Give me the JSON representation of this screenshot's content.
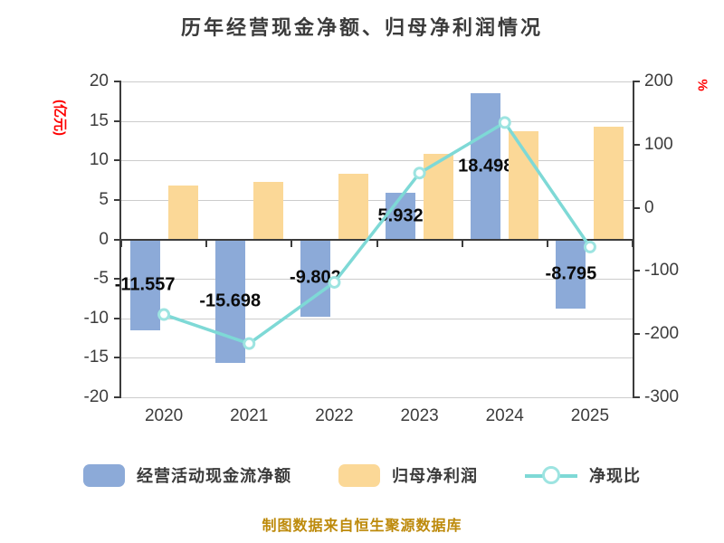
{
  "title": "历年经营现金净额、归母净利润情况",
  "left_axis": {
    "unit": "(亿元)",
    "max": 20,
    "min": -20,
    "ticks": [
      20,
      15,
      10,
      5,
      0,
      -5,
      -10,
      -15,
      -20
    ]
  },
  "right_axis": {
    "unit": "%",
    "max": 200,
    "min": -300,
    "ticks": [
      200,
      100,
      0,
      -100,
      -200,
      -300
    ]
  },
  "chart_data": {
    "type": "bar+line",
    "title": "历年经营现金净额、归母净利润情况",
    "categories": [
      "2020",
      "2021",
      "2022",
      "2023",
      "2024",
      "2025"
    ],
    "series": [
      {
        "name": "经营活动现金流净额",
        "type": "bar",
        "axis": "left",
        "color": "#8caad8",
        "values": [
          -11.557,
          -15.698,
          -9.802,
          5.932,
          18.498,
          -8.795
        ],
        "labels": [
          "-11.557",
          "-15.698",
          "-9.802",
          "5.932",
          "18.498",
          "-8.795"
        ]
      },
      {
        "name": "归母净利润",
        "type": "bar",
        "axis": "left",
        "color": "#fbd897",
        "values": [
          6.8,
          7.3,
          8.3,
          10.8,
          13.7,
          14.3
        ]
      },
      {
        "name": "净现比",
        "type": "line",
        "axis": "right",
        "color": "#7ed9d6",
        "marker_border": "#9de4e1",
        "marker_fill": "#ffffff",
        "values": [
          -169,
          -215,
          -118,
          55,
          135,
          -62
        ]
      }
    ],
    "xlabel": "",
    "ylabel_left": "(亿元)",
    "ylabel_right": "%",
    "ylim_left": [
      -20,
      20
    ],
    "ylim_right": [
      -300,
      200
    ],
    "grid": true,
    "legend_position": "bottom"
  },
  "footer": "制图数据来自恒生聚源数据库",
  "colors": {
    "title": "#3b3b3b",
    "axis_unit_red": "#fe0000",
    "footer_text": "#bd8a0b",
    "axis_text": "#3c3c3c",
    "gridline": "#cccccc"
  }
}
